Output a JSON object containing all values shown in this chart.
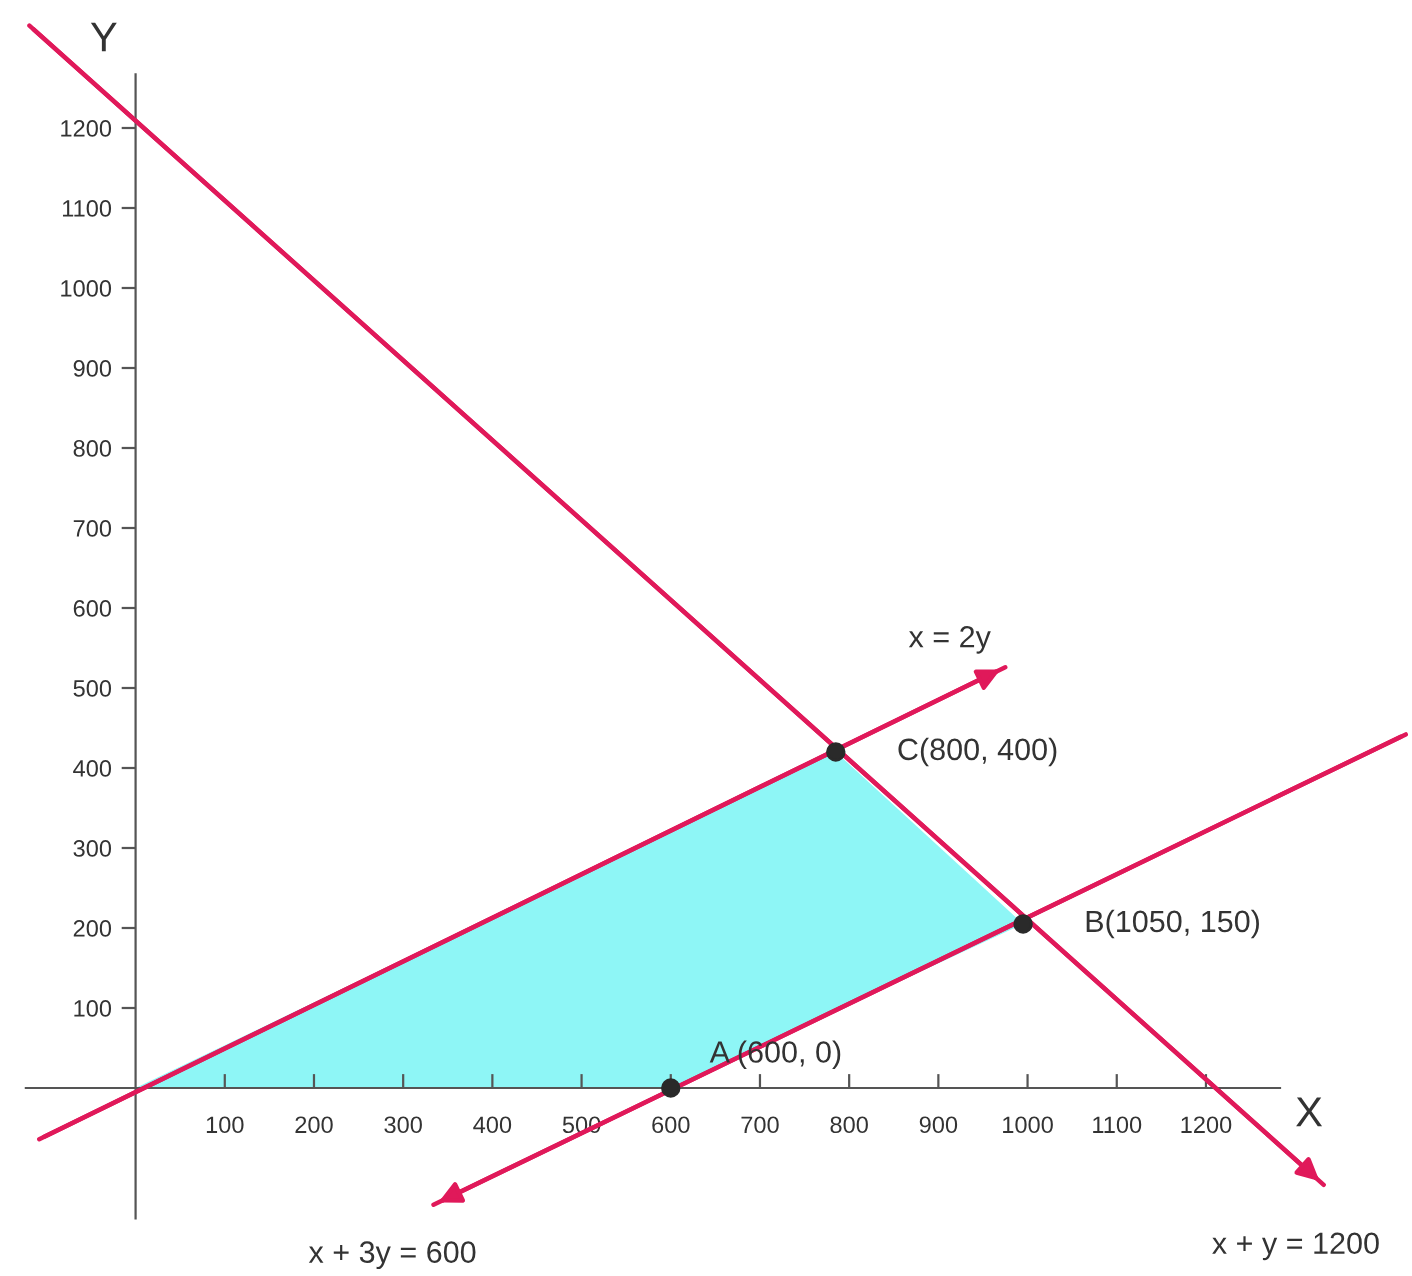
{
  "chart_data": {
    "type": "line",
    "xlabel": "X",
    "ylabel": "Y",
    "xlim": [
      -152,
      1431
    ],
    "ylim": [
      -235,
      1360
    ],
    "xticks": [
      100,
      200,
      300,
      400,
      500,
      600,
      700,
      800,
      900,
      1000,
      1100,
      1200
    ],
    "yticks": [
      100,
      200,
      300,
      400,
      500,
      600,
      700,
      800,
      900,
      1000,
      1100,
      1200
    ],
    "grid": false,
    "legend": false,
    "series": [
      {
        "type": "area",
        "color": "#8ef6f6",
        "x": [
          0,
          785,
          995,
          600
        ],
        "values": [
          0,
          420,
          205,
          0
        ]
      },
      {
        "name": "x + y = 1200",
        "color": "#e0195a",
        "x": [
          -119,
          1332
        ],
        "values": [
          1328,
          -121
        ]
      },
      {
        "name": "x = 2y",
        "color": "#e0195a",
        "x": [
          -108,
          975
        ],
        "values": [
          -64,
          526
        ]
      },
      {
        "name": "x + 3y = 600",
        "color": "#e0195a",
        "x": [
          1424,
          334
        ],
        "values": [
          442,
          -146
        ]
      },
      {
        "type": "scatter",
        "color": "#2a2a2a",
        "x": [
          600,
          995,
          785
        ],
        "values": [
          0,
          205,
          420
        ]
      }
    ],
    "annotations": [
      {
        "text": "A (600, 0)",
        "x": 600,
        "y": 0
      },
      {
        "text": "B(1050, 150)",
        "x": 995,
        "y": 205
      },
      {
        "text": "C(800, 400)",
        "x": 785,
        "y": 420
      }
    ]
  }
}
